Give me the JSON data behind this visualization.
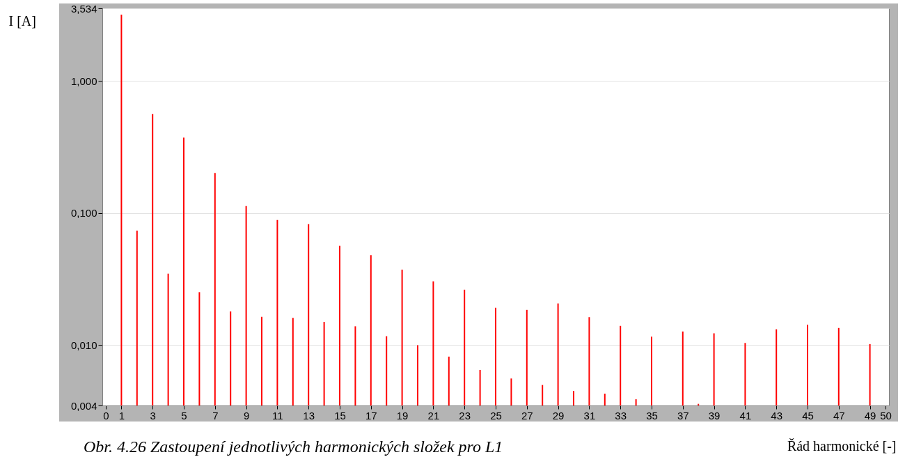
{
  "chart_data": {
    "type": "bar",
    "title": "Obr. 4.26 Zastoupení jednotlivých harmonických složek pro L1",
    "xlabel": "Řád harmonické [-]",
    "ylabel": "I [A]",
    "x": [
      1,
      2,
      3,
      4,
      5,
      6,
      7,
      8,
      9,
      10,
      11,
      12,
      13,
      14,
      15,
      16,
      17,
      18,
      19,
      20,
      21,
      22,
      23,
      24,
      25,
      26,
      27,
      28,
      29,
      30,
      31,
      32,
      33,
      34,
      35,
      36,
      37,
      38,
      39,
      40,
      41,
      42,
      43,
      44,
      45,
      46,
      47,
      48,
      49
    ],
    "values": [
      3.17,
      0.0736,
      0.56,
      0.0348,
      0.372,
      0.0252,
      0.201,
      0.018,
      0.113,
      0.0164,
      0.0885,
      0.0161,
      0.0824,
      0.015,
      0.0565,
      0.0139,
      0.048,
      0.0117,
      0.0373,
      0.01,
      0.0304,
      0.0082,
      0.0263,
      0.0065,
      0.0192,
      0.0056,
      0.0185,
      0.005,
      0.0207,
      0.0045,
      0.0163,
      0.0043,
      0.014,
      0.0039,
      0.0116,
      null,
      0.0127,
      0.0036,
      0.0123,
      null,
      0.0104,
      null,
      0.0132,
      null,
      0.0143,
      null,
      0.0135,
      null,
      0.0102
    ],
    "color": "#ff0000",
    "xlim": [
      0,
      50
    ],
    "xticks": [
      0,
      1,
      3,
      5,
      7,
      9,
      11,
      13,
      15,
      17,
      19,
      21,
      23,
      25,
      27,
      29,
      31,
      33,
      35,
      37,
      39,
      41,
      43,
      45,
      47,
      49,
      50
    ],
    "ylim": [
      0.0035,
      3.534
    ],
    "yticks": [
      {
        "value": 3.534,
        "label": "3,534"
      },
      {
        "value": 1,
        "label": "1,000"
      },
      {
        "value": 0.1,
        "label": "0,100"
      },
      {
        "value": 0.01,
        "label": "0,010"
      },
      {
        "value": 0.0035,
        "label": "0,004"
      }
    ],
    "log": "y",
    "grid": "y"
  }
}
